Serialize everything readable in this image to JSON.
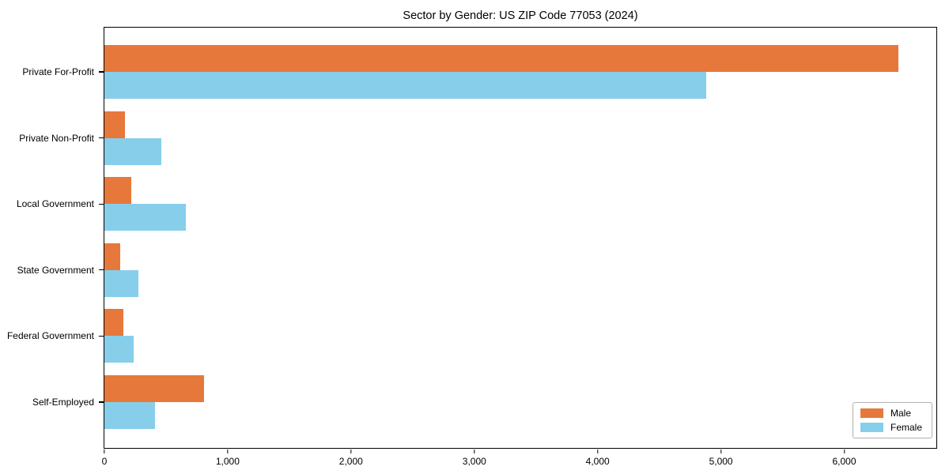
{
  "title": "Sector by Gender: US ZIP Code 77053 (2024)",
  "chart_data": {
    "type": "bar",
    "orientation": "horizontal",
    "title": "Sector by Gender: US ZIP Code 77053 (2024)",
    "categories": [
      "Private For-Profit",
      "Private Non-Profit",
      "Local Government",
      "State Government",
      "Federal Government",
      "Self-Employed"
    ],
    "series": [
      {
        "name": "Male",
        "color": "#e7783b",
        "values": [
          6440,
          165,
          220,
          130,
          155,
          805
        ]
      },
      {
        "name": "Female",
        "color": "#87ceeb",
        "values": [
          4880,
          460,
          660,
          275,
          240,
          410
        ]
      }
    ],
    "xlabel": "",
    "ylabel": "",
    "xlim": [
      0,
      6760
    ],
    "x_ticks": [
      0,
      1000,
      2000,
      3000,
      4000,
      5000,
      6000
    ],
    "x_tick_labels": [
      "0",
      "1,000",
      "2,000",
      "3,000",
      "4,000",
      "5,000",
      "6,000"
    ],
    "grid": false,
    "legend": {
      "position": "lower right",
      "entries": [
        "Male",
        "Female"
      ]
    }
  }
}
